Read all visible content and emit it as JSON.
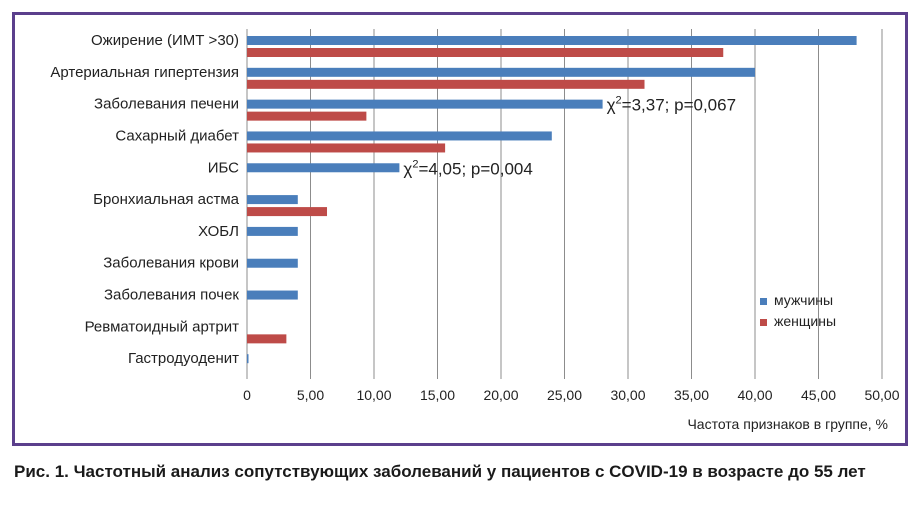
{
  "chart_data": {
    "type": "bar",
    "orientation": "horizontal",
    "categories": [
      "Ожирение (ИМТ >30)",
      "Артериальная гипертензия",
      "Заболевания печени",
      "Сахарный диабет",
      "ИБС",
      "Бронхиальная астма",
      "ХОБЛ",
      "Заболевания крови",
      "Заболевания почек",
      "Ревматоидный артрит",
      "Гастродуоденит"
    ],
    "series": [
      {
        "name": "мужчины",
        "color": "#4a7ebb",
        "values": [
          48.0,
          40.0,
          28.0,
          24.0,
          12.0,
          4.0,
          4.0,
          4.0,
          4.0,
          0.0,
          0.1
        ]
      },
      {
        "name": "женщины",
        "color": "#be4b48",
        "values": [
          37.5,
          31.3,
          9.4,
          15.6,
          0.0,
          6.3,
          0.0,
          0.0,
          0.0,
          3.1,
          0.0
        ]
      }
    ],
    "xlabel": "Частота признаков в группе, %",
    "xlim": [
      0,
      50
    ],
    "xticks": [
      "0",
      "5,00",
      "10,00",
      "15,00",
      "20,00",
      "25,00",
      "30,00",
      "35,00",
      "40,00",
      "45,00",
      "50,00"
    ],
    "grid": true,
    "legend_position": "right",
    "annotations": [
      {
        "category": "Заболевания печени",
        "value": 28.0,
        "chi": "χ",
        "sup": "2",
        "text": "=3,37; p=0,067"
      },
      {
        "category": "ИБС",
        "value": 12.0,
        "chi": "χ",
        "sup": "2",
        "text": "=4,05; p=0,004"
      }
    ]
  },
  "caption": {
    "text": "Рис. 1. Частотный анализ сопутствующих заболеваний у пациентов с COVID-19 в возрасте до 55 лет"
  }
}
